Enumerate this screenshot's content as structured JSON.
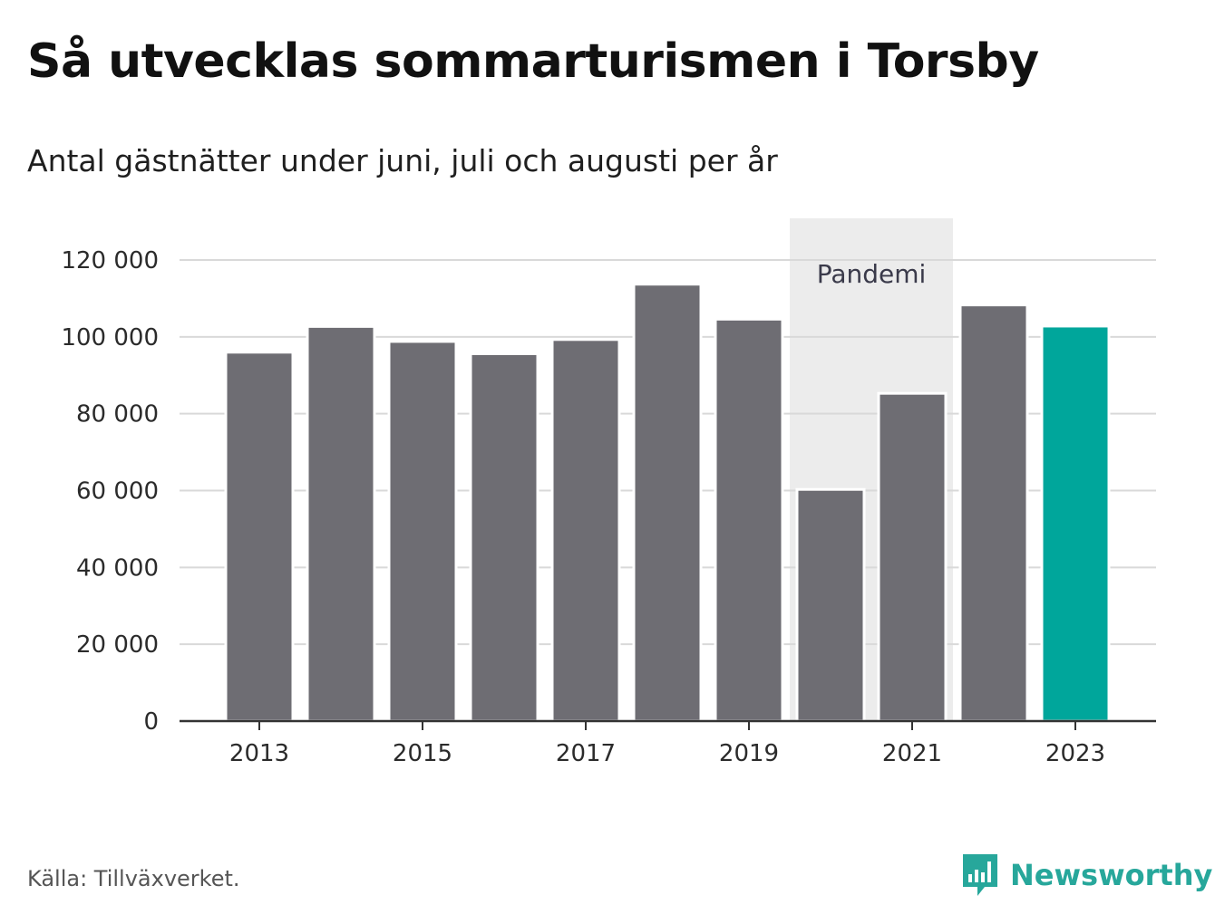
{
  "header": {
    "title": "Så utvecklas sommarturismen i Torsby",
    "subtitle": "Antal gästnätter under juni, juli och augusti per år"
  },
  "footer": {
    "source": "Källa: Tillväxverket.",
    "brand": "Newsworthy"
  },
  "colors": {
    "bar": "#6e6d73",
    "highlight": "#00a69b",
    "band": "#ececec",
    "grid": "#d9d9d9",
    "axis": "#333333",
    "brand": "#27a79b"
  },
  "chart_data": {
    "type": "bar",
    "x": [
      2013,
      2014,
      2015,
      2016,
      2017,
      2018,
      2019,
      2020,
      2021,
      2022,
      2023
    ],
    "values": [
      96000,
      102700,
      98800,
      95600,
      99300,
      113700,
      104600,
      60300,
      85300,
      108300,
      102800
    ],
    "highlight_x": 2023,
    "ylim": [
      0,
      120000
    ],
    "yticks": [
      0,
      20000,
      40000,
      60000,
      80000,
      100000,
      120000
    ],
    "ytick_labels": [
      "0",
      "20 000",
      "40 000",
      "60 000",
      "80 000",
      "100 000",
      "120 000"
    ],
    "xticks": [
      2013,
      2015,
      2017,
      2019,
      2021,
      2023
    ],
    "xtick_labels": [
      "2013",
      "2015",
      "2017",
      "2019",
      "2021",
      "2023"
    ],
    "grid": true,
    "annotation": {
      "label": "Pandemi",
      "x_range": [
        2020,
        2021
      ]
    }
  }
}
